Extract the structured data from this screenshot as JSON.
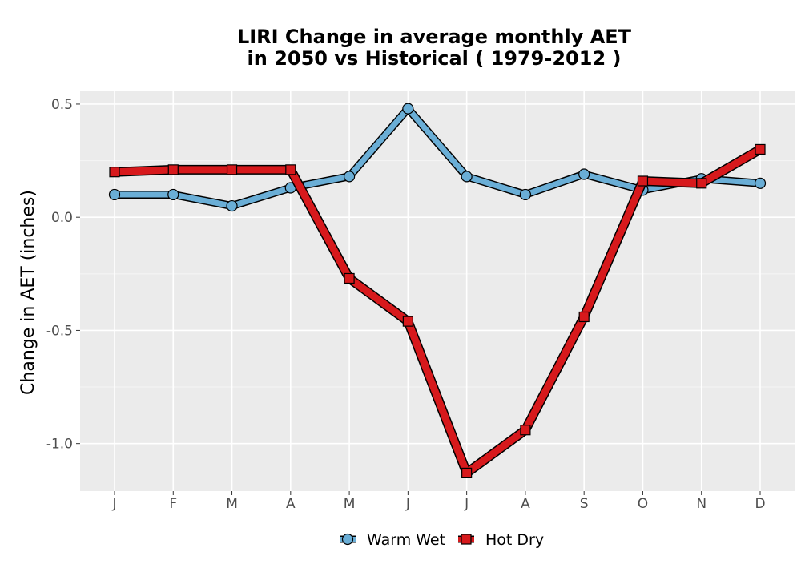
{
  "chart_data": {
    "type": "line",
    "title_line1": "LIRI  Change in average monthly AET",
    "title_line2": "in 2050 vs Historical ( 1979-2012 )",
    "ylabel": "Change in AET (inches)",
    "xlabel": "",
    "categories": [
      "J",
      "F",
      "M",
      "A",
      "M",
      "J",
      "J",
      "A",
      "S",
      "O",
      "N",
      "D"
    ],
    "ylim": [
      -1.21,
      0.56
    ],
    "yticks": [
      0.5,
      0.0,
      -0.5,
      -1.0
    ],
    "ytick_labels": [
      "0.5",
      "0.0",
      "-0.5",
      "-1.0"
    ],
    "grid": true,
    "legend_position": "bottom",
    "series": [
      {
        "name": "Warm Wet",
        "marker": "circle",
        "fill": "#6aaed6",
        "values": [
          0.1,
          0.1,
          0.05,
          0.13,
          0.18,
          0.48,
          0.18,
          0.1,
          0.19,
          0.12,
          0.17,
          0.15
        ]
      },
      {
        "name": "Hot Dry",
        "marker": "square",
        "fill": "#d7191c",
        "values": [
          0.2,
          0.21,
          0.21,
          0.21,
          -0.27,
          -0.46,
          -1.13,
          -0.94,
          -0.44,
          0.16,
          0.15,
          0.3
        ]
      }
    ]
  }
}
